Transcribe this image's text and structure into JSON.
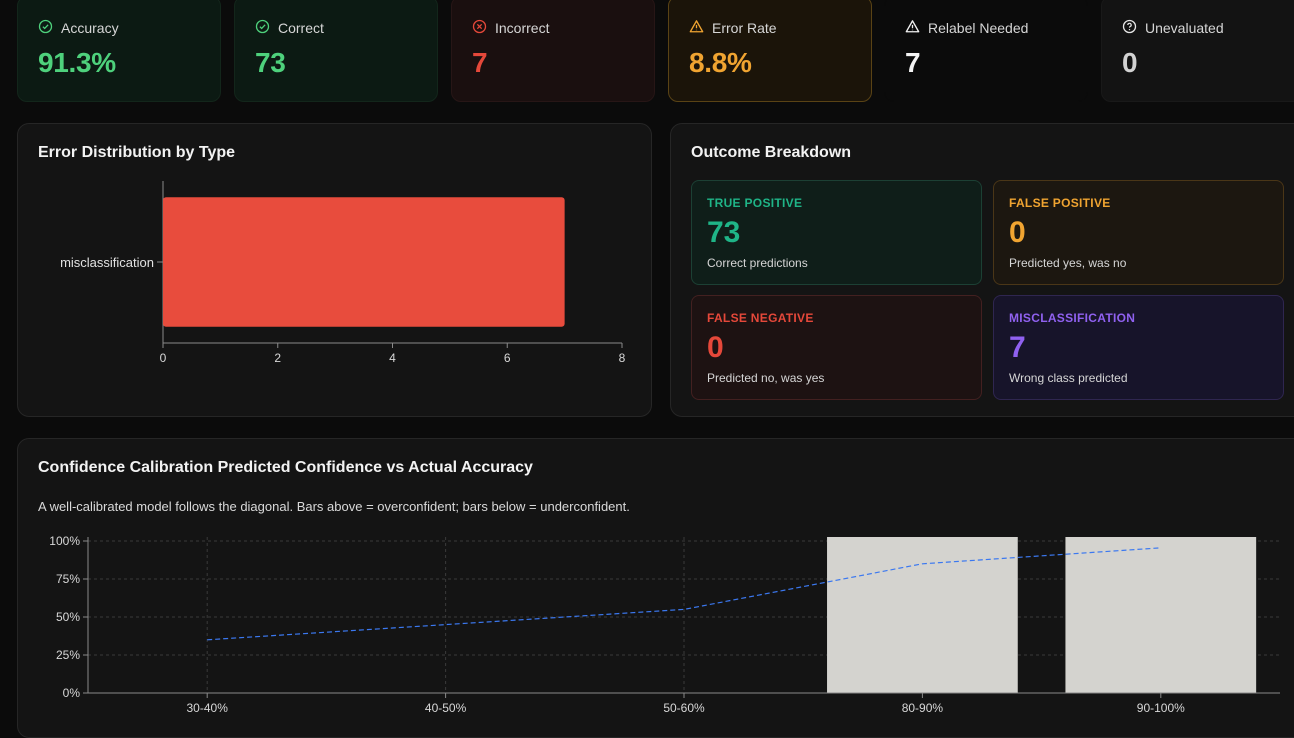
{
  "stats": [
    {
      "label": "Accuracy",
      "value": "91.3%",
      "icon": "check-circle-icon"
    },
    {
      "label": "Correct",
      "value": "73",
      "icon": "check-circle-icon"
    },
    {
      "label": "Incorrect",
      "value": "7",
      "icon": "x-circle-icon"
    },
    {
      "label": "Error Rate",
      "value": "8.8%",
      "icon": "warning-triangle-icon"
    },
    {
      "label": "Relabel Needed",
      "value": "7",
      "icon": "warning-triangle-icon"
    },
    {
      "label": "Unevaluated",
      "value": "0",
      "icon": "question-circle-icon"
    }
  ],
  "colors": {
    "green": "#4ed17c",
    "red": "#e5483a",
    "amber": "#f0a431",
    "bar_error": "#e84c3d",
    "bar_calibration": "#d4d3cf",
    "line_accuracy": "#3b78f0"
  },
  "error_panel": {
    "title": "Error Distribution by Type"
  },
  "outcome_panel": {
    "title": "Outcome Breakdown",
    "cards": [
      {
        "label": "TRUE POSITIVE",
        "value": "73",
        "desc": "Correct predictions"
      },
      {
        "label": "FALSE POSITIVE",
        "value": "0",
        "desc": "Predicted yes, was no"
      },
      {
        "label": "FALSE NEGATIVE",
        "value": "0",
        "desc": "Predicted no, was yes"
      },
      {
        "label": "MISCLASSIFICATION",
        "value": "7",
        "desc": "Wrong class predicted"
      }
    ]
  },
  "calibration_panel": {
    "title": "Confidence Calibration Predicted Confidence vs Actual Accuracy",
    "subtitle": "A well-calibrated model follows the diagonal. Bars above = overconfident; bars below = underconfident."
  },
  "chart_data": [
    {
      "type": "bar",
      "orientation": "horizontal",
      "categories": [
        "misclassification"
      ],
      "values": [
        7
      ],
      "xlim": [
        0,
        8
      ],
      "xticks": [
        0,
        2,
        4,
        6,
        8
      ],
      "grid": false
    },
    {
      "type": "bar",
      "categories": [
        "30-40%",
        "40-50%",
        "50-60%",
        "80-90%",
        "90-100%"
      ],
      "series": [
        {
          "values": [
            null,
            null,
            null,
            1.0,
            1.0
          ],
          "style": "bar"
        },
        {
          "values": [
            0.35,
            0.45,
            0.55,
            0.85,
            0.955
          ],
          "style": "dashed-line"
        }
      ],
      "ylim": [
        0,
        1
      ],
      "yticks": [
        "0%",
        "25%",
        "50%",
        "75%",
        "100%"
      ],
      "grid": true
    }
  ]
}
